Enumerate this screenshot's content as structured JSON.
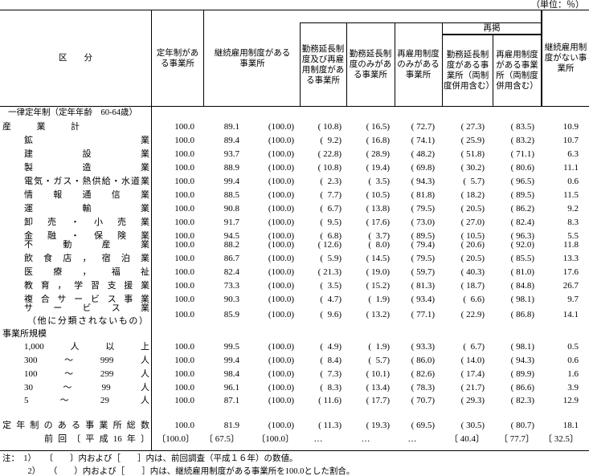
{
  "unit": "（単位：％）",
  "headers": {
    "category": "区　　分",
    "col1": "定年制がある事業所",
    "col2": "継続雇用制度がある事業所",
    "col3": "勤務延長制度及び再雇用制度がある事業所",
    "col4": "勤務延長制度のみがある事業所",
    "col5": "再雇用制度のみがある事業所",
    "regroup": "再掲",
    "col6": "勤務延長制度がある事業所（両制度併用含む）",
    "col7": "再雇用制度がある事業所（両制度併用含む）",
    "col8": "継続雇用制度がない事業所"
  },
  "section_title": "一律定年制（定年年齢　60-64歳）",
  "size_section_title": "事業所規模",
  "rows": [
    {
      "label": "産業計",
      "level": 0,
      "v": [
        "100.0",
        "89.1",
        "(100.0)",
        "( 10.8)",
        "( 16.5)",
        "( 72.7)",
        "( 27.3)",
        "( 83.5)",
        "10.9"
      ]
    },
    {
      "label": "鉱業",
      "level": 1,
      "v": [
        "100.0",
        "89.4",
        "(100.0)",
        "(  9.2)",
        "( 16.8)",
        "( 74.1)",
        "( 25.9)",
        "( 83.2)",
        "10.7"
      ]
    },
    {
      "label": "建設業",
      "level": 1,
      "v": [
        "100.0",
        "93.7",
        "(100.0)",
        "( 22.8)",
        "( 28.9)",
        "( 48.2)",
        "( 51.8)",
        "( 71.1)",
        "6.3"
      ]
    },
    {
      "label": "製造業",
      "level": 1,
      "v": [
        "100.0",
        "88.9",
        "(100.0)",
        "( 10.8)",
        "( 19.4)",
        "( 69.8)",
        "( 30.2)",
        "( 80.6)",
        "11.1"
      ]
    },
    {
      "label": "電気・ガス・熱供給・水道業",
      "level": 1,
      "v": [
        "100.0",
        "99.4",
        "(100.0)",
        "(  2.3)",
        "(  3.5)",
        "( 94.3)",
        "(  5.7)",
        "( 96.5)",
        "0.6"
      ]
    },
    {
      "label": "情報通信業",
      "level": 1,
      "v": [
        "100.0",
        "88.5",
        "(100.0)",
        "(  7.7)",
        "( 10.5)",
        "( 81.8)",
        "( 18.2)",
        "( 89.5)",
        "11.5"
      ]
    },
    {
      "label": "運輸業",
      "level": 1,
      "v": [
        "100.0",
        "90.8",
        "(100.0)",
        "(  6.7)",
        "( 13.8)",
        "( 79.5)",
        "( 20.5)",
        "( 86.2)",
        "9.2"
      ]
    },
    {
      "label": "卸売・小売業",
      "level": 1,
      "v": [
        "100.0",
        "91.7",
        "(100.0)",
        "(  9.5)",
        "( 17.6)",
        "( 73.0)",
        "( 27.0)",
        "( 82.4)",
        "8.3"
      ]
    },
    {
      "label": "金融・保険業",
      "level": 1,
      "v": [
        "100.0",
        "94.5",
        "(100.0)",
        "(  6.8)",
        "(  3.7)",
        "( 89.5)",
        "( 10.5)",
        "( 96.3)",
        "5.5"
      ]
    },
    {
      "label": "不動産業",
      "level": 1,
      "v": [
        "100.0",
        "88.2",
        "(100.0)",
        "( 12.6)",
        "(  8.0)",
        "( 79.4)",
        "( 20.6)",
        "( 92.0)",
        "11.8"
      ]
    },
    {
      "label": "飲食店，宿泊業",
      "level": 1,
      "v": [
        "100.0",
        "86.7",
        "(100.0)",
        "(  5.9)",
        "( 14.5)",
        "( 79.5)",
        "( 20.5)",
        "( 85.5)",
        "13.3"
      ]
    },
    {
      "label": "医療，福祉",
      "level": 1,
      "v": [
        "100.0",
        "82.4",
        "(100.0)",
        "( 21.3)",
        "( 19.0)",
        "( 59.7)",
        "( 40.3)",
        "( 81.0)",
        "17.6"
      ]
    },
    {
      "label": "教育，学習支援業",
      "level": 1,
      "v": [
        "100.0",
        "73.3",
        "(100.0)",
        "(  3.5)",
        "( 15.2)",
        "( 81.3)",
        "( 18.7)",
        "( 84.8)",
        "26.7"
      ]
    },
    {
      "label": "複合サービス事業",
      "level": 1,
      "v": [
        "100.0",
        "90.3",
        "(100.0)",
        "(  4.7)",
        "(  1.9)",
        "( 93.4)",
        "(  6.6)",
        "( 98.1)",
        "9.7"
      ]
    },
    {
      "label": "サービス業",
      "sublabel": "（他に分類されないもの）",
      "level": 1,
      "v": [
        "100.0",
        "85.9",
        "(100.0)",
        "(  9.6)",
        "( 13.2)",
        "( 77.1)",
        "( 22.9)",
        "( 86.8)",
        "14.1"
      ]
    },
    {
      "label": "1,000　人　以　上",
      "level": 2,
      "v": [
        "100.0",
        "99.5",
        "(100.0)",
        "(  4.9)",
        "(  1.9)",
        "( 93.3)",
        "(  6.7)",
        "( 98.1)",
        "0.5"
      ]
    },
    {
      "label": "300　〜　999　人",
      "level": 2,
      "v": [
        "100.0",
        "99.4",
        "(100.0)",
        "(  8.4)",
        "(  5.7)",
        "( 86.0)",
        "( 14.0)",
        "( 94.3)",
        "0.6"
      ]
    },
    {
      "label": "100　〜　299　人",
      "level": 2,
      "v": [
        "100.0",
        "98.4",
        "(100.0)",
        "(  7.3)",
        "( 10.1)",
        "( 82.6)",
        "( 17.4)",
        "( 89.9)",
        "1.6"
      ]
    },
    {
      "label": "30　〜　99　人",
      "level": 2,
      "v": [
        "100.0",
        "96.1",
        "(100.0)",
        "(  8.3)",
        "( 13.4)",
        "( 78.3)",
        "( 21.7)",
        "( 86.6)",
        "3.9"
      ]
    },
    {
      "label": "5　〜　29　人",
      "level": 2,
      "v": [
        "100.0",
        "87.1",
        "(100.0)",
        "( 11.6)",
        "( 17.7)",
        "( 70.7)",
        "( 29.3)",
        "( 82.3)",
        "12.9"
      ]
    },
    {
      "label": "定年制のある事業所総数",
      "level": 3,
      "v": [
        "100.0",
        "81.9",
        "(100.0)",
        "( 11.3)",
        "( 19.3)",
        "( 69.5)",
        "( 30.5)",
        "( 80.7)",
        "18.1"
      ]
    },
    {
      "label": "前回〔平成16年〕",
      "level": 4,
      "v": [
        "〔100.0〕",
        "〔 67.5〕",
        "〔100.0〕",
        "…",
        "…",
        "…",
        "〔 40.4〕",
        "〔 77.7〕",
        "〔 32.5〕"
      ]
    }
  ],
  "notes": [
    "注：　1）　　〔　　〕内および［　　］内は、前回調査（平成１６年）の数値。",
    "　　　2）　　（　　）内および［　　］内は、継続雇用制度がある事業所を100.0とした割合。"
  ]
}
